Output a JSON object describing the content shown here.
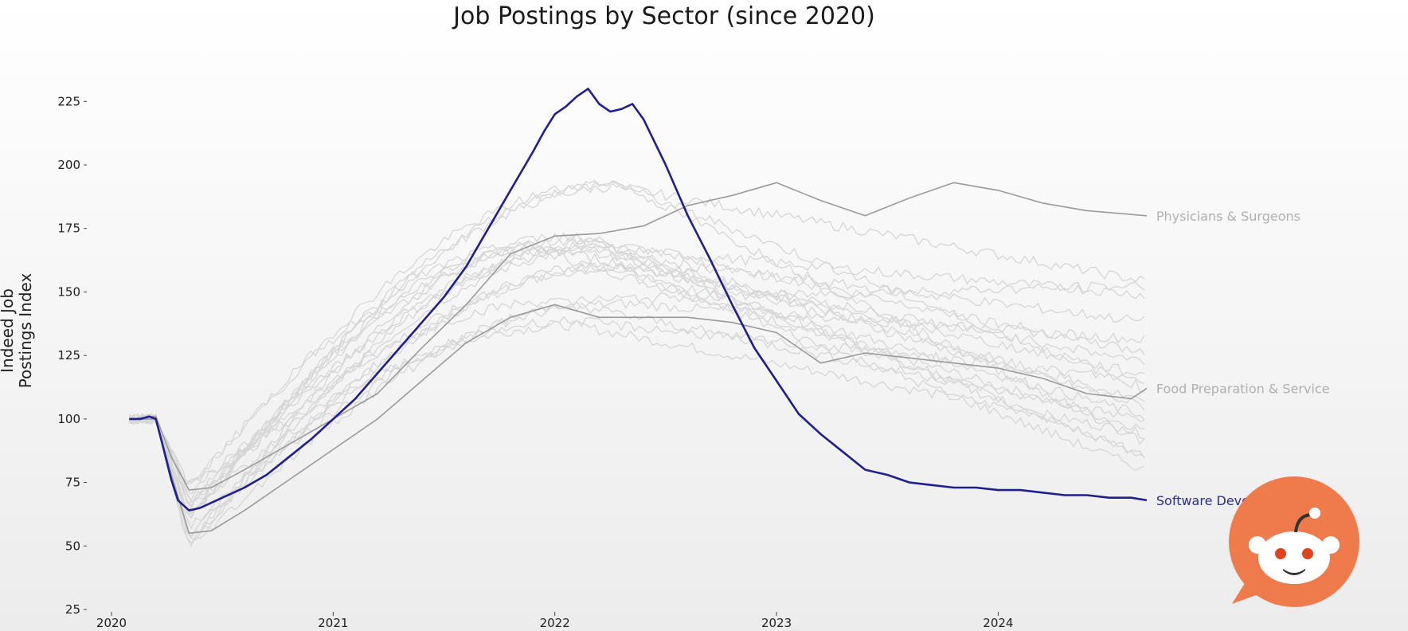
{
  "chart_data": {
    "type": "line",
    "title": "Job Postings by Sector (since 2020)",
    "ylabel_lines": [
      "Indeed Job",
      "Postings Index"
    ],
    "ylim": [
      25,
      232
    ],
    "yticks": [
      25,
      50,
      75,
      100,
      125,
      150,
      175,
      200,
      225
    ],
    "xlim": [
      2020,
      2024.85
    ],
    "xticks": [
      {
        "value": 2020,
        "label": "2020"
      },
      {
        "value": 2021,
        "label": "2021"
      },
      {
        "value": 2022,
        "label": "2022"
      },
      {
        "value": 2023,
        "label": "2023"
      },
      {
        "value": 2024,
        "label": "2024"
      }
    ],
    "grid": false,
    "legend": "direct labels at right end of highlighted series",
    "background_colors": [
      "#ffffff",
      "#ececec"
    ],
    "highlighted_series": [
      {
        "name": "Software Development",
        "color": "#1f1f8f",
        "label_color": "#2b2b9a",
        "x": [
          2020.08,
          2020.13,
          2020.17,
          2020.2,
          2020.23,
          2020.27,
          2020.3,
          2020.35,
          2020.4,
          2020.5,
          2020.6,
          2020.7,
          2020.8,
          2020.9,
          2021.0,
          2021.1,
          2021.2,
          2021.3,
          2021.4,
          2021.5,
          2021.6,
          2021.7,
          2021.8,
          2021.9,
          2021.95,
          2022.0,
          2022.05,
          2022.1,
          2022.15,
          2022.2,
          2022.25,
          2022.3,
          2022.35,
          2022.4,
          2022.5,
          2022.6,
          2022.7,
          2022.8,
          2022.9,
          2023.0,
          2023.1,
          2023.2,
          2023.3,
          2023.4,
          2023.5,
          2023.6,
          2023.7,
          2023.8,
          2023.9,
          2024.0,
          2024.1,
          2024.2,
          2024.3,
          2024.4,
          2024.5,
          2024.6,
          2024.67
        ],
        "values": [
          100,
          100,
          101,
          100,
          90,
          76,
          68,
          64,
          65,
          69,
          73,
          78,
          85,
          92,
          100,
          108,
          118,
          128,
          138,
          148,
          160,
          175,
          190,
          205,
          213,
          220,
          223,
          227,
          230,
          224,
          221,
          222,
          224,
          218,
          200,
          180,
          163,
          145,
          128,
          115,
          102,
          94,
          87,
          80,
          78,
          75,
          74,
          73,
          73,
          72,
          72,
          71,
          70,
          70,
          69,
          69,
          68
        ]
      },
      {
        "name": "Physicians & Surgeons",
        "color": "#9a9a9a",
        "label_color": "#b0b0b0",
        "x": [
          2020.08,
          2020.2,
          2020.27,
          2020.35,
          2020.45,
          2020.6,
          2020.8,
          2021.0,
          2021.2,
          2021.4,
          2021.6,
          2021.8,
          2022.0,
          2022.2,
          2022.4,
          2022.6,
          2022.8,
          2023.0,
          2023.2,
          2023.4,
          2023.6,
          2023.8,
          2024.0,
          2024.2,
          2024.4,
          2024.67
        ],
        "values": [
          100,
          101,
          85,
          72,
          73,
          80,
          90,
          100,
          110,
          128,
          145,
          165,
          172,
          173,
          176,
          184,
          188,
          193,
          186,
          180,
          187,
          193,
          190,
          185,
          182,
          180
        ]
      },
      {
        "name": "Food Preparation & Service",
        "color": "#9a9a9a",
        "label_color": "#b0b0b0",
        "x": [
          2020.08,
          2020.2,
          2020.27,
          2020.35,
          2020.45,
          2020.6,
          2020.8,
          2021.0,
          2021.2,
          2021.4,
          2021.6,
          2021.8,
          2022.0,
          2022.2,
          2022.4,
          2022.6,
          2022.8,
          2023.0,
          2023.2,
          2023.4,
          2023.6,
          2023.8,
          2024.0,
          2024.2,
          2024.4,
          2024.6,
          2024.67
        ],
        "values": [
          100,
          100,
          78,
          55,
          56,
          64,
          76,
          88,
          100,
          115,
          130,
          140,
          145,
          140,
          140,
          140,
          138,
          134,
          122,
          126,
          124,
          122,
          120,
          116,
          110,
          108,
          112
        ]
      }
    ],
    "background_series_count": 20
  }
}
